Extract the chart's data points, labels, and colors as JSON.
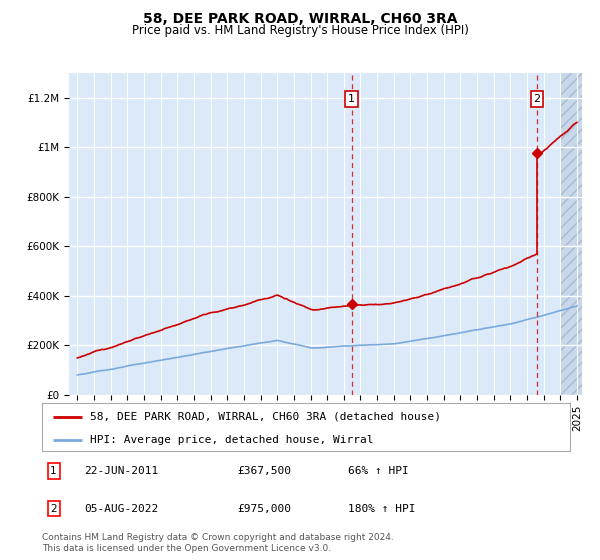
{
  "title": "58, DEE PARK ROAD, WIRRAL, CH60 3RA",
  "subtitle": "Price paid vs. HM Land Registry's House Price Index (HPI)",
  "ylim": [
    0,
    1300000
  ],
  "yticks": [
    0,
    200000,
    400000,
    600000,
    800000,
    1000000,
    1200000
  ],
  "ytick_labels": [
    "£0",
    "£200K",
    "£400K",
    "£600K",
    "£800K",
    "£1M",
    "£1.2M"
  ],
  "year_start": 1995,
  "year_end": 2025,
  "legend_label_red": "58, DEE PARK ROAD, WIRRAL, CH60 3RA (detached house)",
  "legend_label_blue": "HPI: Average price, detached house, Wirral",
  "annotation1_label": "1",
  "annotation1_date": "22-JUN-2011",
  "annotation1_price": "£367,500",
  "annotation1_hpi": "66% ↑ HPI",
  "annotation1_year": 2011.47,
  "annotation1_price_val": 367500,
  "annotation2_label": "2",
  "annotation2_date": "05-AUG-2022",
  "annotation2_price": "£975,000",
  "annotation2_hpi": "180% ↑ HPI",
  "annotation2_year": 2022.6,
  "annotation2_price_val": 975000,
  "footnote": "Contains HM Land Registry data © Crown copyright and database right 2024.\nThis data is licensed under the Open Government Licence v3.0.",
  "bg_color": "#dce9f8",
  "hatch_color": "#c8d8ea",
  "red_color": "#cc0000",
  "blue_color": "#7aaadd",
  "grid_color": "#ffffff",
  "title_fontsize": 10,
  "subtitle_fontsize": 8.5,
  "tick_fontsize": 7.5,
  "legend_fontsize": 8,
  "ann_fontsize": 8
}
